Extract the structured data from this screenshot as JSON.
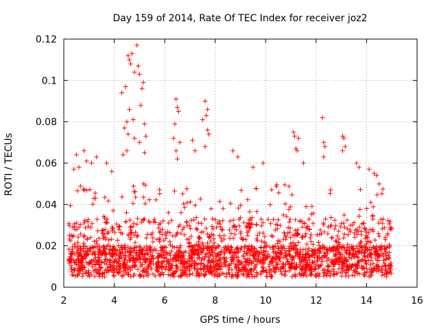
{
  "chart_data": {
    "type": "scatter",
    "title": "Day 159 of 2014, Rate Of TEC Index for receiver joz2",
    "xlabel": "GPS time / hours",
    "ylabel": "ROTI / TECUs",
    "xlim": [
      2,
      16
    ],
    "ylim": [
      0,
      0.12
    ],
    "xticks": [
      "2",
      "4",
      "6",
      "8",
      "10",
      "12",
      "14",
      "16"
    ],
    "yticks": [
      "0",
      "0.02",
      "0.04",
      "0.06",
      "0.08",
      "0.1",
      "0.12"
    ],
    "grid": true,
    "marker": "+",
    "series": [
      {
        "name": "ROTI",
        "color": "#ff0000",
        "x_range": [
          2.2,
          15.0
        ],
        "band_points": 2200,
        "peak_points": [
          [
            4.55,
            0.112
          ],
          [
            4.6,
            0.11
          ],
          [
            4.65,
            0.108
          ],
          [
            4.7,
            0.113
          ],
          [
            4.8,
            0.104
          ],
          [
            4.9,
            0.117
          ],
          [
            4.95,
            0.107
          ],
          [
            5.0,
            0.103
          ],
          [
            5.1,
            0.096
          ],
          [
            5.15,
            0.099
          ],
          [
            4.3,
            0.094
          ],
          [
            4.45,
            0.097
          ],
          [
            4.5,
            0.08
          ],
          [
            4.6,
            0.086
          ],
          [
            4.75,
            0.081
          ],
          [
            5.05,
            0.088
          ],
          [
            4.4,
            0.077
          ],
          [
            4.55,
            0.074
          ],
          [
            4.8,
            0.072
          ],
          [
            5.2,
            0.079
          ],
          [
            5.25,
            0.073
          ],
          [
            4.35,
            0.064
          ],
          [
            4.5,
            0.066
          ],
          [
            5.0,
            0.07
          ],
          [
            5.2,
            0.065
          ],
          [
            6.45,
            0.091
          ],
          [
            6.5,
            0.087
          ],
          [
            6.55,
            0.085
          ],
          [
            6.4,
            0.079
          ],
          [
            6.35,
            0.072
          ],
          [
            6.45,
            0.066
          ],
          [
            6.6,
            0.07
          ],
          [
            6.5,
            0.062
          ],
          [
            7.1,
            0.071
          ],
          [
            7.2,
            0.066
          ],
          [
            7.5,
            0.081
          ],
          [
            7.6,
            0.09
          ],
          [
            7.7,
            0.086
          ],
          [
            7.65,
            0.083
          ],
          [
            7.7,
            0.076
          ],
          [
            7.75,
            0.074
          ],
          [
            7.6,
            0.068
          ],
          [
            8.7,
            0.066
          ],
          [
            8.9,
            0.063
          ],
          [
            9.5,
            0.058
          ],
          [
            9.9,
            0.06
          ],
          [
            11.1,
            0.075
          ],
          [
            11.15,
            0.073
          ],
          [
            11.2,
            0.067
          ],
          [
            11.25,
            0.066
          ],
          [
            11.3,
            0.072
          ],
          [
            11.5,
            0.06
          ],
          [
            12.25,
            0.082
          ],
          [
            12.3,
            0.07
          ],
          [
            12.35,
            0.068
          ],
          [
            12.3,
            0.063
          ],
          [
            13.05,
            0.073
          ],
          [
            13.1,
            0.072
          ],
          [
            13.15,
            0.068
          ],
          [
            13.05,
            0.066
          ],
          [
            13.6,
            0.06
          ],
          [
            13.7,
            0.058
          ],
          [
            14.1,
            0.057
          ],
          [
            14.3,
            0.055
          ],
          [
            14.4,
            0.054
          ],
          [
            14.5,
            0.05
          ],
          [
            2.5,
            0.064
          ],
          [
            2.8,
            0.066
          ],
          [
            2.9,
            0.061
          ],
          [
            3.3,
            0.063
          ],
          [
            3.1,
            0.06
          ],
          [
            2.4,
            0.057
          ],
          [
            2.6,
            0.058
          ],
          [
            3.7,
            0.06
          ],
          [
            3.9,
            0.056
          ]
        ]
      }
    ]
  }
}
